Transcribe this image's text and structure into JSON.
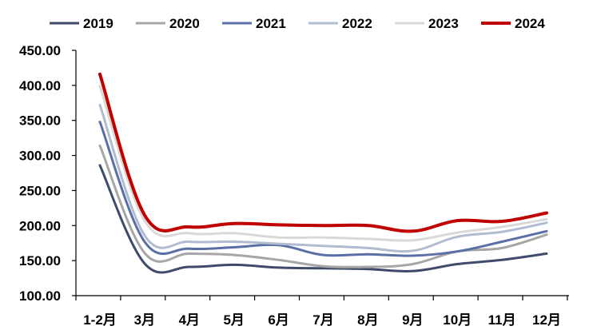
{
  "chart_data": {
    "type": "line",
    "title": "",
    "xlabel": "",
    "ylabel": "",
    "categories": [
      "1-2月",
      "3月",
      "4月",
      "5月",
      "6月",
      "7月",
      "8月",
      "9月",
      "10月",
      "11月",
      "12月"
    ],
    "ylim": [
      100,
      450
    ],
    "y_ticks": [
      "100.00",
      "150.00",
      "200.00",
      "250.00",
      "300.00",
      "350.00",
      "400.00",
      "450.00"
    ],
    "grid": false,
    "legend_position": "top",
    "series": [
      {
        "name": "2019",
        "color": "#3f4b6b",
        "values": [
          286,
          146,
          141,
          144,
          140,
          139,
          138,
          135,
          145,
          151,
          160
        ]
      },
      {
        "name": "2020",
        "color": "#a6a6a6",
        "values": [
          314,
          161,
          160,
          158,
          151,
          142,
          141,
          145,
          163,
          168,
          187
        ]
      },
      {
        "name": "2021",
        "color": "#5a6fa6",
        "values": [
          348,
          177,
          167,
          169,
          172,
          158,
          159,
          157,
          163,
          177,
          192
        ]
      },
      {
        "name": "2022",
        "color": "#b0bccf",
        "values": [
          372,
          186,
          177,
          177,
          174,
          171,
          168,
          164,
          184,
          191,
          204
        ]
      },
      {
        "name": "2023",
        "color": "#d9d9d9",
        "values": [
          399,
          207,
          189,
          189,
          183,
          183,
          181,
          179,
          190,
          198,
          209
        ]
      },
      {
        "name": "2024",
        "color": "#c00000",
        "values": [
          416,
          215,
          198,
          203,
          201,
          200,
          200,
          192,
          207,
          206,
          218
        ]
      }
    ]
  }
}
